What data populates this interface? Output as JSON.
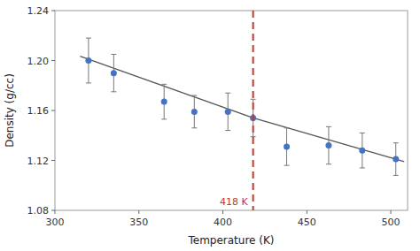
{
  "chart_data": {
    "type": "scatter",
    "xlabel": "Temperature (K)",
    "ylabel": "Density (g/cc)",
    "xlim": [
      300,
      510
    ],
    "ylim": [
      1.08,
      1.24
    ],
    "xticks": [
      300,
      350,
      400,
      450,
      500
    ],
    "yticks": [
      1.08,
      1.12,
      1.16,
      {
        "value": 1.2,
        "label": "1.20"
      },
      1.24
    ],
    "grid": false,
    "series": [
      {
        "type": "scatter",
        "color": "#4472c4",
        "marker": "circle",
        "x": [
          320,
          335,
          365,
          383,
          403,
          418,
          438,
          463,
          483,
          503
        ],
        "values": [
          1.2,
          1.19,
          1.167,
          1.159,
          1.159,
          1.154,
          1.131,
          1.132,
          1.128,
          1.121
        ],
        "errors": [
          0.018,
          0.015,
          0.014,
          0.013,
          0.015,
          0.015,
          0.015,
          0.015,
          0.014,
          0.013
        ]
      },
      {
        "type": "line",
        "color": "#555555",
        "x": [
          315,
          418
        ],
        "values": [
          1.2035,
          1.154
        ]
      },
      {
        "type": "line",
        "color": "#555555",
        "x": [
          418,
          508
        ],
        "values": [
          1.154,
          1.119
        ]
      }
    ],
    "annotations": [
      {
        "x": 418,
        "text": "418 K",
        "color": "#c0392b",
        "line_style": "dashed"
      }
    ]
  }
}
